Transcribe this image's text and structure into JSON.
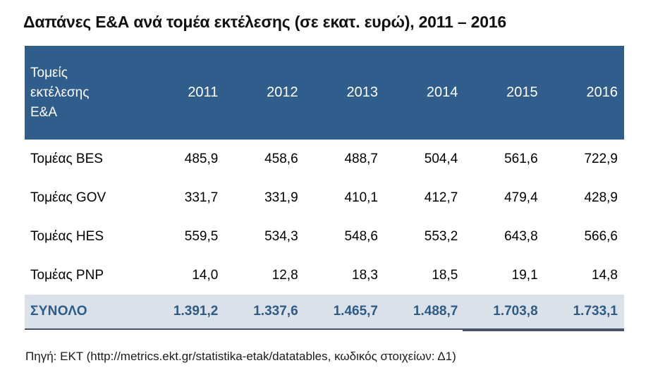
{
  "page": {
    "title": "Δαπάνες Ε&Α ανά τομέα εκτέλεσης (σε εκατ. ευρώ), 2011 – 2016",
    "source": "Πηγή: ΕΚΤ (http://metrics.ekt.gr/statistika-etak/datatables, κωδικός στοιχείων: Δ1)"
  },
  "table": {
    "header_label": "Τομείς εκτέλεσης Ε&Α",
    "years": [
      "2011",
      "2012",
      "2013",
      "2014",
      "2015",
      "2016"
    ],
    "rows": [
      {
        "label": "Τομέας BES",
        "values": [
          "485,9",
          "458,6",
          "488,7",
          "504,4",
          "561,6",
          "722,9"
        ]
      },
      {
        "label": "Τομέας GOV",
        "values": [
          "331,7",
          "331,9",
          "410,1",
          "412,7",
          "479,4",
          "428,9"
        ]
      },
      {
        "label": "Τομέας HES",
        "values": [
          "559,5",
          "534,3",
          "548,6",
          "553,2",
          "643,8",
          "566,6"
        ]
      },
      {
        "label": "Τομέας PNP",
        "values": [
          "14,0",
          "12,8",
          "18,3",
          "18,5",
          "19,1",
          "14,8"
        ]
      }
    ],
    "total": {
      "label": "ΣΥΝΟΛΟ",
      "values": [
        "1.391,2",
        "1.337,6",
        "1.465,7",
        "1.488,7",
        "1.703,8",
        "1.733,1"
      ]
    }
  },
  "colors": {
    "header_background": "#2F5E8C",
    "header_text": "#FFFFFF",
    "total_row_background": "#DAE1E9",
    "total_row_text": "#2B5C87",
    "bottom_border": "#44546A",
    "body_text": "#000000"
  },
  "chart_data": {
    "type": "table",
    "title": "Δαπάνες Ε&Α ανά τομέα εκτέλεσης (σε εκατ. ευρώ), 2011 – 2016",
    "categories": [
      "2011",
      "2012",
      "2013",
      "2014",
      "2015",
      "2016"
    ],
    "row_header": "Τομείς εκτέλεσης Ε&Α",
    "series": [
      {
        "name": "Τομέας BES",
        "values": [
          485.9,
          458.6,
          488.7,
          504.4,
          561.6,
          722.9
        ]
      },
      {
        "name": "Τομέας GOV",
        "values": [
          331.7,
          331.9,
          410.1,
          412.7,
          479.4,
          428.9
        ]
      },
      {
        "name": "Τομέας HES",
        "values": [
          559.5,
          534.3,
          548.6,
          553.2,
          643.8,
          566.6
        ]
      },
      {
        "name": "Τομέας PNP",
        "values": [
          14.0,
          12.8,
          18.3,
          18.5,
          19.1,
          14.8
        ]
      },
      {
        "name": "ΣΥΝΟΛΟ",
        "values": [
          1391.2,
          1337.6,
          1465.7,
          1488.7,
          1703.8,
          1733.1
        ]
      }
    ],
    "units": "εκατ. ευρώ",
    "source": "Πηγή: ΕΚΤ (http://metrics.ekt.gr/statistika-etak/datatables, κωδικός στοιχείων: Δ1)"
  }
}
